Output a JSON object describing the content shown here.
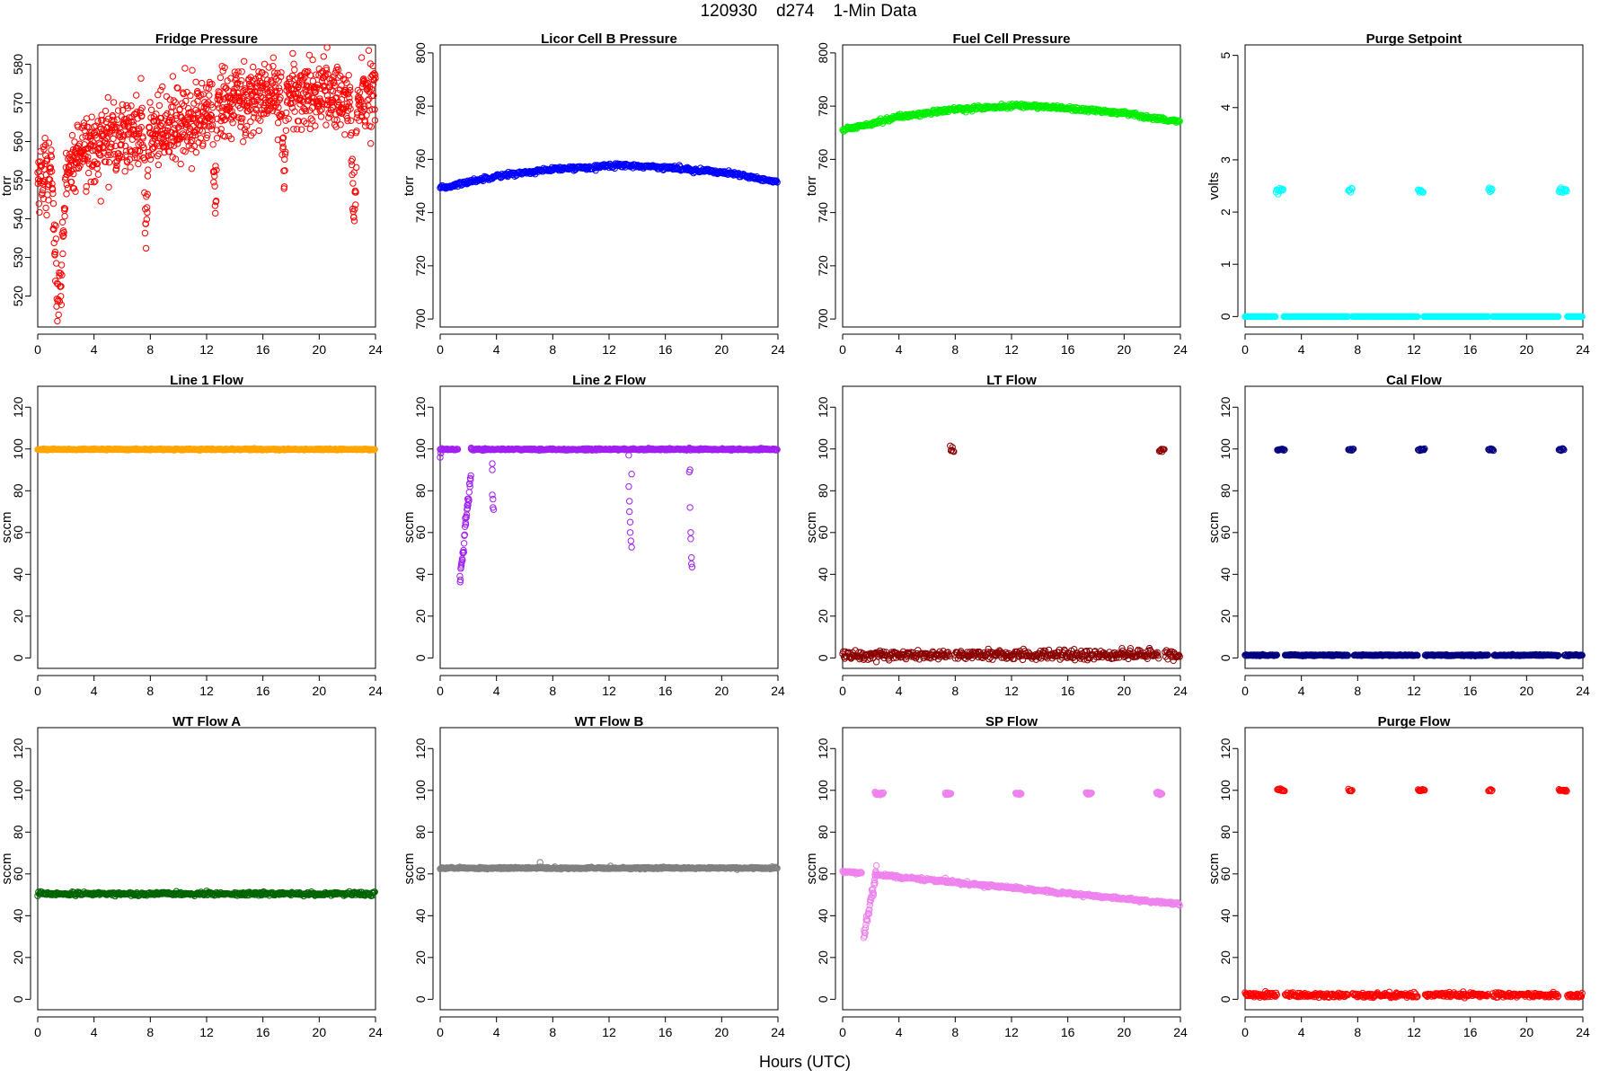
{
  "figure": {
    "title": "120930    d274    1-Min Data",
    "xlabel": "Hours (UTC)"
  },
  "chart_data": [
    {
      "type": "scatter",
      "title": "Fridge Pressure",
      "ylabel": "torr",
      "color": "#ff0000",
      "xlim": [
        0,
        24
      ],
      "ylim": [
        512,
        585
      ],
      "xticks": [
        0,
        4,
        8,
        12,
        16,
        20,
        24
      ],
      "yticks": [
        520,
        530,
        540,
        550,
        560,
        570,
        580
      ],
      "grid": false,
      "profile": {
        "kind": "fridge"
      }
    },
    {
      "type": "scatter",
      "title": "Licor Cell B Pressure",
      "ylabel": "torr",
      "color": "#0000ff",
      "xlim": [
        0,
        24
      ],
      "ylim": [
        697,
        803
      ],
      "xticks": [
        0,
        4,
        8,
        12,
        16,
        20,
        24
      ],
      "yticks": [
        700,
        720,
        740,
        760,
        780,
        800
      ],
      "grid": false,
      "profile": {
        "kind": "curve",
        "points": [
          [
            0,
            749
          ],
          [
            2,
            751.5
          ],
          [
            4,
            753.8
          ],
          [
            8,
            756.2
          ],
          [
            12,
            757.6
          ],
          [
            13,
            757.8
          ],
          [
            16,
            757.0
          ],
          [
            20,
            755.2
          ],
          [
            24,
            751.5
          ]
        ],
        "jitter": 0.4
      }
    },
    {
      "type": "scatter",
      "title": "Fuel Cell Pressure",
      "ylabel": "torr",
      "color": "#00ee00",
      "xlim": [
        0,
        24
      ],
      "ylim": [
        697,
        803
      ],
      "xticks": [
        0,
        4,
        8,
        12,
        16,
        20,
        24
      ],
      "yticks": [
        700,
        720,
        740,
        760,
        780,
        800
      ],
      "grid": false,
      "profile": {
        "kind": "curve",
        "points": [
          [
            0,
            771
          ],
          [
            4,
            776
          ],
          [
            8,
            778.8
          ],
          [
            12,
            780.0
          ],
          [
            13,
            780.2
          ],
          [
            16,
            779.2
          ],
          [
            20,
            777.4
          ],
          [
            24,
            774
          ]
        ],
        "jitter": 0.4
      }
    },
    {
      "type": "scatter",
      "title": "Purge Setpoint",
      "ylabel": "volts",
      "color": "#00ffff",
      "xlim": [
        0,
        24
      ],
      "ylim": [
        -0.2,
        5.2
      ],
      "xticks": [
        0,
        4,
        8,
        12,
        16,
        20,
        24
      ],
      "yticks": [
        0,
        1,
        2,
        3,
        4,
        5
      ],
      "grid": false,
      "profile": {
        "kind": "steps",
        "base": 0.0,
        "base_jitter": 0.0,
        "high": 2.42,
        "high_jitter": 0.03,
        "episodes": [
          [
            2.2,
            2.7
          ],
          [
            7.3,
            7.6
          ],
          [
            12.3,
            12.7
          ],
          [
            17.3,
            17.6
          ],
          [
            22.3,
            22.9
          ]
        ]
      }
    },
    {
      "type": "scatter",
      "title": "Line 1 Flow",
      "ylabel": "sccm",
      "color": "#ffa500",
      "xlim": [
        0,
        24
      ],
      "ylim": [
        -5,
        130
      ],
      "xticks": [
        0,
        4,
        8,
        12,
        16,
        20,
        24
      ],
      "yticks": [
        0,
        20,
        40,
        60,
        80,
        100,
        120
      ],
      "grid": false,
      "profile": {
        "kind": "constant",
        "value": 99.8,
        "jitter": 0.15
      }
    },
    {
      "type": "scatter",
      "title": "Line 2 Flow",
      "ylabel": "sccm",
      "color": "#a020f0",
      "xlim": [
        0,
        24
      ],
      "ylim": [
        -5,
        130
      ],
      "xticks": [
        0,
        4,
        8,
        12,
        16,
        20,
        24
      ],
      "yticks": [
        0,
        20,
        40,
        60,
        80,
        100,
        120
      ],
      "grid": false,
      "profile": {
        "kind": "line2"
      }
    },
    {
      "type": "scatter",
      "title": "LT Flow",
      "ylabel": "sccm",
      "color": "#8b0000",
      "xlim": [
        0,
        24
      ],
      "ylim": [
        -5,
        130
      ],
      "xticks": [
        0,
        4,
        8,
        12,
        16,
        20,
        24
      ],
      "yticks": [
        0,
        20,
        40,
        60,
        80,
        100,
        120
      ],
      "grid": false,
      "profile": {
        "kind": "steps",
        "base": 1.5,
        "base_jitter": 1.2,
        "high": 99.5,
        "high_jitter": 1.2,
        "episodes": [
          [
            7.6,
            7.9
          ],
          [
            22.5,
            22.9
          ]
        ]
      }
    },
    {
      "type": "scatter",
      "title": "Cal Flow",
      "ylabel": "sccm",
      "color": "#000080",
      "xlim": [
        0,
        24
      ],
      "ylim": [
        -5,
        130
      ],
      "xticks": [
        0,
        4,
        8,
        12,
        16,
        20,
        24
      ],
      "yticks": [
        0,
        20,
        40,
        60,
        80,
        100,
        120
      ],
      "grid": false,
      "profile": {
        "kind": "steps",
        "base": 1.3,
        "base_jitter": 0.15,
        "high": 99.8,
        "high_jitter": 0.3,
        "episodes": [
          [
            2.3,
            2.8
          ],
          [
            7.3,
            7.7
          ],
          [
            12.3,
            12.8
          ],
          [
            17.3,
            17.7
          ],
          [
            22.3,
            22.7
          ]
        ]
      }
    },
    {
      "type": "scatter",
      "title": "WT Flow A",
      "ylabel": "sccm",
      "color": "#006400",
      "xlim": [
        0,
        24
      ],
      "ylim": [
        -5,
        130
      ],
      "xticks": [
        0,
        4,
        8,
        12,
        16,
        20,
        24
      ],
      "yticks": [
        0,
        20,
        40,
        60,
        80,
        100,
        120
      ],
      "grid": false,
      "profile": {
        "kind": "constant",
        "value": 50.5,
        "jitter": 0.4
      }
    },
    {
      "type": "scatter",
      "title": "WT Flow B",
      "ylabel": "sccm",
      "color": "#808080",
      "xlim": [
        0,
        24
      ],
      "ylim": [
        -5,
        130
      ],
      "xticks": [
        0,
        4,
        8,
        12,
        16,
        20,
        24
      ],
      "yticks": [
        0,
        20,
        40,
        60,
        80,
        100,
        120
      ],
      "grid": false,
      "profile": {
        "kind": "constant",
        "value": 62.8,
        "jitter": 0.2,
        "outliers": [
          [
            7.1,
            65.5
          ],
          [
            12.1,
            63.8
          ],
          [
            23.6,
            63.5
          ]
        ]
      }
    },
    {
      "type": "scatter",
      "title": "SP Flow",
      "ylabel": "sccm",
      "color": "#ee82ee",
      "xlim": [
        0,
        24
      ],
      "ylim": [
        -5,
        130
      ],
      "xticks": [
        0,
        4,
        8,
        12,
        16,
        20,
        24
      ],
      "yticks": [
        0,
        20,
        40,
        60,
        80,
        100,
        120
      ],
      "grid": false,
      "profile": {
        "kind": "spflow"
      }
    },
    {
      "type": "scatter",
      "title": "Purge Flow",
      "ylabel": "sccm",
      "color": "#ff0000",
      "xlim": [
        0,
        24
      ],
      "ylim": [
        -5,
        130
      ],
      "xticks": [
        0,
        4,
        8,
        12,
        16,
        20,
        24
      ],
      "yticks": [
        0,
        20,
        40,
        60,
        80,
        100,
        120
      ],
      "grid": false,
      "profile": {
        "kind": "steps",
        "base": 2.0,
        "base_jitter": 0.6,
        "high": 100.0,
        "high_jitter": 0.4,
        "episodes": [
          [
            2.3,
            2.8
          ],
          [
            7.3,
            7.6
          ],
          [
            12.3,
            12.8
          ],
          [
            17.3,
            17.6
          ],
          [
            22.3,
            22.9
          ]
        ]
      }
    }
  ]
}
